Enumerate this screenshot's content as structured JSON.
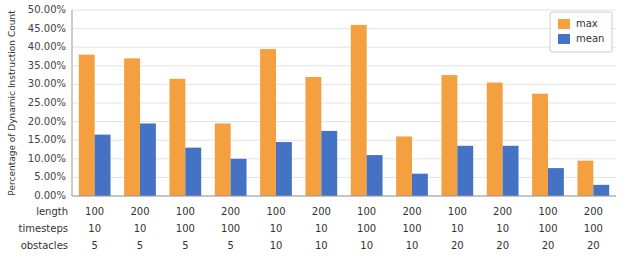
{
  "chart_data": {
    "type": "bar",
    "y_label": "Percentage of Dynamic Instruction Count",
    "category_row_labels": [
      "length",
      "timesteps",
      "obstacles"
    ],
    "categories": [
      [
        "100",
        "10",
        "5"
      ],
      [
        "200",
        "10",
        "5"
      ],
      [
        "100",
        "100",
        "5"
      ],
      [
        "200",
        "100",
        "5"
      ],
      [
        "100",
        "10",
        "10"
      ],
      [
        "200",
        "10",
        "10"
      ],
      [
        "100",
        "100",
        "10"
      ],
      [
        "200",
        "100",
        "10"
      ],
      [
        "100",
        "10",
        "20"
      ],
      [
        "200",
        "10",
        "20"
      ],
      [
        "100",
        "100",
        "20"
      ],
      [
        "200",
        "100",
        "20"
      ]
    ],
    "series": [
      {
        "name": "max",
        "color": "#F4A040",
        "values": [
          38.0,
          37.0,
          31.5,
          19.5,
          39.5,
          32.0,
          46.0,
          16.0,
          32.5,
          30.5,
          27.5,
          9.5
        ]
      },
      {
        "name": "mean",
        "color": "#4472C4",
        "values": [
          16.5,
          19.5,
          13.0,
          10.0,
          14.5,
          17.5,
          11.0,
          6.0,
          13.5,
          13.5,
          7.5,
          3.0
        ]
      }
    ],
    "ylim": [
      0,
      50
    ],
    "yticks": [
      {
        "value": 0,
        "label": "0.00%"
      },
      {
        "value": 5,
        "label": "5.00%"
      },
      {
        "value": 10,
        "label": "10.00%"
      },
      {
        "value": 15,
        "label": "15.00%"
      },
      {
        "value": 20,
        "label": "20.00%"
      },
      {
        "value": 25,
        "label": "25.00%"
      },
      {
        "value": 30,
        "label": "30.00%"
      },
      {
        "value": 35,
        "label": "35.00%"
      },
      {
        "value": 40,
        "label": "40.00%"
      },
      {
        "value": 45,
        "label": "45.00%"
      },
      {
        "value": 50,
        "label": "50.00%"
      }
    ],
    "grid": true,
    "legend": "upper right"
  }
}
